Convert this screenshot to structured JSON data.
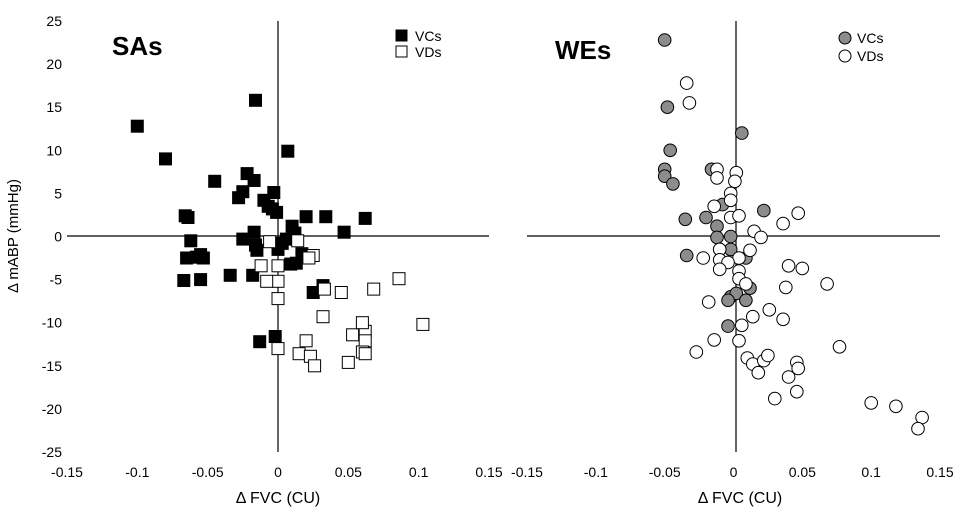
{
  "colors": {
    "black": "#000000",
    "gray": "#8c8c8c",
    "white": "#ffffff"
  },
  "shared": {
    "ylabel": "Δ  mABP (mmHg)",
    "xlabel": "Δ FVC (CU)",
    "y_ticks": [
      "25",
      "20",
      "15",
      "10",
      "5",
      "0",
      "-5",
      "-10",
      "-15",
      "-20",
      "-25"
    ],
    "x_ticks": [
      "-0.15",
      "-0.1",
      "-0.05",
      "0",
      "0.05",
      "0.1",
      "0.15"
    ]
  },
  "chart_data": [
    {
      "type": "scatter",
      "title": "SAs",
      "xlabel": "Δ FVC (CU)",
      "ylabel": "Δ  mABP (mmHg)",
      "xlim": [
        -0.15,
        0.15
      ],
      "ylim": [
        -25,
        25
      ],
      "grid": false,
      "legend": "top-right",
      "series": [
        {
          "name": "VCs",
          "marker": "square-filled",
          "points": [
            [
              -0.1,
              12.8
            ],
            [
              -0.08,
              9.0
            ],
            [
              -0.045,
              6.4
            ],
            [
              -0.016,
              15.8
            ],
            [
              0.007,
              9.9
            ],
            [
              -0.022,
              7.3
            ],
            [
              -0.017,
              6.5
            ],
            [
              -0.025,
              5.2
            ],
            [
              -0.028,
              4.5
            ],
            [
              -0.003,
              5.1
            ],
            [
              -0.01,
              4.2
            ],
            [
              -0.007,
              3.5
            ],
            [
              -0.004,
              3.2
            ],
            [
              -0.001,
              2.8
            ],
            [
              0.01,
              1.2
            ],
            [
              0.012,
              0.4
            ],
            [
              0.02,
              2.3
            ],
            [
              0.034,
              2.3
            ],
            [
              0.062,
              2.1
            ],
            [
              0.047,
              0.5
            ],
            [
              -0.066,
              2.4
            ],
            [
              -0.064,
              2.2
            ],
            [
              -0.025,
              -0.3
            ],
            [
              -0.017,
              0.5
            ],
            [
              -0.016,
              -1.0
            ],
            [
              -0.015,
              -1.6
            ],
            [
              0.003,
              -0.8
            ],
            [
              0.006,
              -0.3
            ],
            [
              0.017,
              -2.0
            ],
            [
              0.013,
              -3.1
            ],
            [
              0.009,
              -3.2
            ],
            [
              0.0,
              -1.5
            ],
            [
              -0.062,
              -0.5
            ],
            [
              -0.065,
              -2.5
            ],
            [
              -0.055,
              -2.1
            ],
            [
              -0.053,
              -2.5
            ],
            [
              -0.058,
              -2.4
            ],
            [
              -0.067,
              -5.1
            ],
            [
              -0.055,
              -5.0
            ],
            [
              -0.034,
              -4.5
            ],
            [
              -0.018,
              -4.5
            ],
            [
              0.025,
              -6.5
            ],
            [
              0.032,
              -5.7
            ],
            [
              -0.002,
              -11.6
            ],
            [
              -0.013,
              -12.2
            ]
          ]
        },
        {
          "name": "VDs",
          "marker": "square-open",
          "points": [
            [
              -0.012,
              -3.4
            ],
            [
              -0.006,
              -0.6
            ],
            [
              0.014,
              -0.5
            ],
            [
              0.0,
              -3.4
            ],
            [
              0.0,
              -5.2
            ],
            [
              0.0,
              -7.2
            ],
            [
              0.025,
              -2.2
            ],
            [
              0.022,
              -2.5
            ],
            [
              0.033,
              -6.1
            ],
            [
              -0.008,
              -5.2
            ],
            [
              0.045,
              -6.5
            ],
            [
              0.068,
              -6.1
            ],
            [
              0.086,
              -4.9
            ],
            [
              0.032,
              -9.3
            ],
            [
              0.02,
              -12.1
            ],
            [
              0.015,
              -13.6
            ],
            [
              0.023,
              -13.9
            ],
            [
              0.026,
              -15.0
            ],
            [
              0.0,
              -13.0
            ],
            [
              0.053,
              -11.4
            ],
            [
              0.062,
              -11.0
            ],
            [
              0.062,
              -12.1
            ],
            [
              0.06,
              -13.4
            ],
            [
              0.062,
              -13.6
            ],
            [
              0.05,
              -14.6
            ],
            [
              0.103,
              -10.2
            ],
            [
              0.06,
              -10.0
            ]
          ]
        }
      ]
    },
    {
      "type": "scatter",
      "title": "WEs",
      "xlabel": "Δ FVC (CU)",
      "ylabel": "",
      "xlim": [
        -0.15,
        0.15
      ],
      "ylim": [
        -25,
        25
      ],
      "grid": false,
      "legend": "top-right",
      "series": [
        {
          "name": "VCs",
          "marker": "circle-gray",
          "points": [
            [
              -0.05,
              22.8
            ],
            [
              -0.048,
              15.0
            ],
            [
              -0.046,
              10.0
            ],
            [
              0.006,
              12.0
            ],
            [
              -0.05,
              7.8
            ],
            [
              -0.05,
              7.0
            ],
            [
              -0.044,
              6.1
            ],
            [
              -0.016,
              7.8
            ],
            [
              -0.035,
              2.0
            ],
            [
              -0.02,
              2.2
            ],
            [
              -0.008,
              3.7
            ],
            [
              0.022,
              3.0
            ],
            [
              -0.012,
              1.2
            ],
            [
              -0.012,
              -0.1
            ],
            [
              -0.002,
              0.0
            ],
            [
              -0.002,
              -1.5
            ],
            [
              -0.01,
              -1.5
            ],
            [
              0.009,
              -2.5
            ],
            [
              -0.034,
              -2.2
            ],
            [
              0.012,
              -6.0
            ],
            [
              -0.002,
              -7.0
            ],
            [
              0.002,
              -6.6
            ],
            [
              0.009,
              -7.4
            ],
            [
              -0.004,
              -7.4
            ],
            [
              -0.004,
              -10.4
            ]
          ]
        },
        {
          "name": "VDs",
          "marker": "circle-open",
          "points": [
            [
              -0.034,
              17.8
            ],
            [
              -0.032,
              15.5
            ],
            [
              -0.012,
              7.8
            ],
            [
              0.002,
              7.4
            ],
            [
              0.001,
              6.4
            ],
            [
              -0.012,
              6.8
            ],
            [
              -0.002,
              5.0
            ],
            [
              -0.002,
              4.2
            ],
            [
              -0.014,
              3.5
            ],
            [
              -0.002,
              2.2
            ],
            [
              0.004,
              2.4
            ],
            [
              0.015,
              0.6
            ],
            [
              0.02,
              -0.1
            ],
            [
              0.036,
              1.5
            ],
            [
              0.047,
              2.7
            ],
            [
              -0.01,
              -1.5
            ],
            [
              -0.01,
              -2.7
            ],
            [
              0.004,
              -2.5
            ],
            [
              -0.004,
              -3.0
            ],
            [
              0.012,
              -1.6
            ],
            [
              -0.022,
              -2.5
            ],
            [
              -0.01,
              -3.8
            ],
            [
              0.004,
              -4.0
            ],
            [
              0.04,
              -3.4
            ],
            [
              0.05,
              -3.7
            ],
            [
              0.004,
              -4.9
            ],
            [
              0.009,
              -5.5
            ],
            [
              0.038,
              -5.9
            ],
            [
              0.068,
              -5.5
            ],
            [
              -0.018,
              -7.6
            ],
            [
              0.026,
              -8.5
            ],
            [
              0.014,
              -9.3
            ],
            [
              0.006,
              -10.3
            ],
            [
              0.004,
              -12.1
            ],
            [
              0.036,
              -9.6
            ],
            [
              -0.027,
              -13.4
            ],
            [
              -0.014,
              -12.0
            ],
            [
              0.01,
              -14.1
            ],
            [
              0.014,
              -14.8
            ],
            [
              0.018,
              -15.8
            ],
            [
              0.022,
              -14.4
            ],
            [
              0.025,
              -13.8
            ],
            [
              0.046,
              -14.6
            ],
            [
              0.047,
              -15.3
            ],
            [
              0.04,
              -16.3
            ],
            [
              0.046,
              -18.0
            ],
            [
              0.03,
              -18.8
            ],
            [
              0.077,
              -12.8
            ],
            [
              0.1,
              -19.3
            ],
            [
              0.118,
              -19.7
            ],
            [
              0.137,
              -21.0
            ],
            [
              0.134,
              -22.3
            ]
          ]
        }
      ]
    }
  ]
}
